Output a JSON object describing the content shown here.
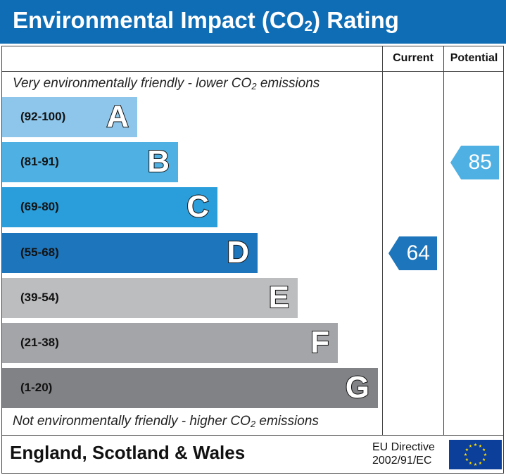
{
  "title": {
    "prefix": "Environmental Impact (CO",
    "subscript": "2",
    "suffix": ") Rating"
  },
  "columns": {
    "current": "Current",
    "potential": "Potential"
  },
  "notes": {
    "top": {
      "prefix": "Very environmentally friendly - lower CO",
      "subscript": "2",
      "suffix": " emissions"
    },
    "bottom": {
      "prefix": "Not environmentally friendly - higher CO",
      "subscript": "2",
      "suffix": " emissions"
    }
  },
  "bands": [
    {
      "letter": "A",
      "range": "(92-100)",
      "color": "#8dc6ea"
    },
    {
      "letter": "B",
      "range": "(81-91)",
      "color": "#4fb1e3"
    },
    {
      "letter": "C",
      "range": "(69-80)",
      "color": "#2a9edb"
    },
    {
      "letter": "D",
      "range": "(55-68)",
      "color": "#1d75bb"
    },
    {
      "letter": "E",
      "range": "(39-54)",
      "color": "#bcbdbf"
    },
    {
      "letter": "F",
      "range": "(21-38)",
      "color": "#a4a5a8"
    },
    {
      "letter": "G",
      "range": "(1-20)",
      "color": "#818285"
    }
  ],
  "current": {
    "value": "64",
    "band": "D",
    "color": "#1d75bb"
  },
  "potential": {
    "value": "85",
    "band": "B",
    "color": "#4fb1e3"
  },
  "footer": {
    "region": "England, Scotland & Wales",
    "directive_line1": "EU Directive",
    "directive_line2": "2002/91/EC"
  },
  "colors": {
    "title_bar": "#0f6db5",
    "flag_blue": "#0c3f9a",
    "flag_star": "#ffdd00"
  }
}
